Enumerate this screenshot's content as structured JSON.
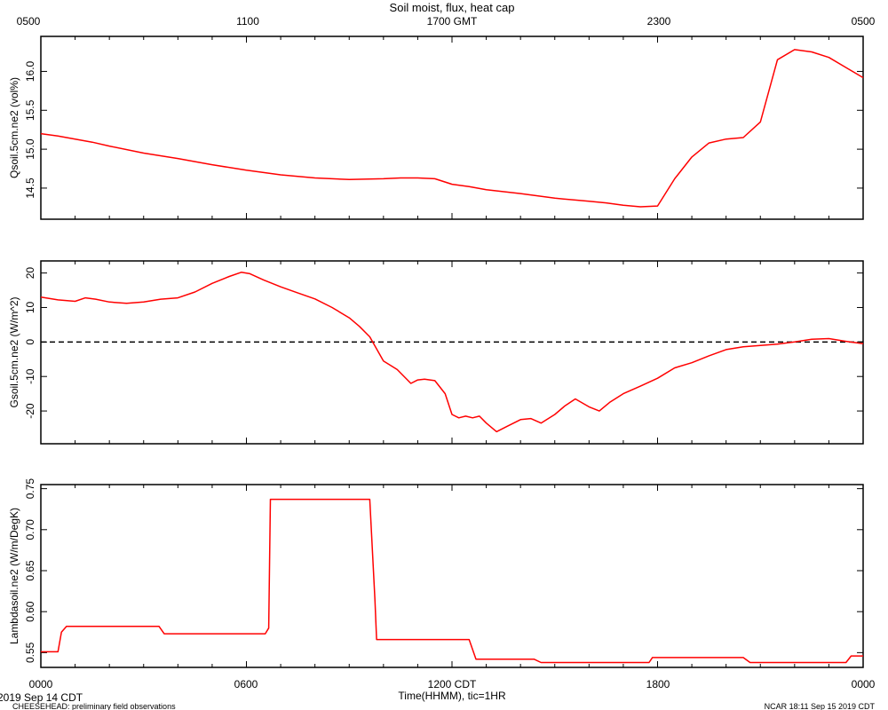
{
  "title": "Soil moist, flux, heat cap",
  "top_axis": {
    "ticks": [
      "0500",
      "1100",
      "1700 GMT",
      "2300",
      "0500"
    ]
  },
  "bottom_axis": {
    "ticks": [
      "0000",
      "0600",
      "1200 CDT",
      "1800",
      "0000"
    ],
    "label": "Time(HHMM), tic=1HR"
  },
  "footer": {
    "date": "2019 Sep 14 CDT",
    "left": "CHEESEHEAD: preliminary field observations",
    "right": "NCAR 18:11 Sep 15 2019 CDT"
  },
  "colors": {
    "series": "#ff0000",
    "axis": "#000000",
    "zero_line": "#000000"
  },
  "chart_data": [
    {
      "type": "line",
      "ylabel": "Qsoil.5cm.ne2 (vol%)",
      "ylim": [
        14.1,
        16.45
      ],
      "yticks": [
        "14.5",
        "15.0",
        "15.5",
        "16.0"
      ],
      "x_hours": [
        0,
        0.5,
        1,
        1.5,
        2,
        3,
        4,
        5,
        6,
        7,
        8,
        9,
        10,
        10.5,
        11,
        11.5,
        12,
        12.5,
        13,
        14,
        15,
        16,
        16.5,
        17,
        17.5,
        18,
        18.5,
        19,
        19.5,
        20,
        20.5,
        21,
        21.5,
        22,
        22.5,
        23,
        23.5,
        24
      ],
      "values": [
        15.2,
        15.17,
        15.13,
        15.09,
        15.04,
        14.95,
        14.88,
        14.8,
        14.73,
        14.67,
        14.63,
        14.61,
        14.62,
        14.63,
        14.63,
        14.62,
        14.55,
        14.52,
        14.48,
        14.43,
        14.37,
        14.33,
        14.31,
        14.28,
        14.26,
        14.27,
        14.62,
        14.9,
        15.08,
        15.13,
        15.15,
        15.35,
        16.15,
        16.28,
        16.25,
        16.18,
        16.05,
        15.92
      ]
    },
    {
      "type": "line",
      "ylabel": "Gsoil.5cm.ne2 (W/m^2)",
      "ylim": [
        -29.5,
        23.5
      ],
      "yticks": [
        "-20",
        "-10",
        "0",
        "10",
        "20"
      ],
      "zero_line": true,
      "x_hours": [
        0,
        0.5,
        1,
        1.3,
        1.6,
        2,
        2.5,
        3,
        3.5,
        4,
        4.5,
        5,
        5.5,
        5.85,
        6.1,
        6.5,
        7,
        7.5,
        8,
        8.5,
        9,
        9.3,
        9.6,
        9.8,
        10,
        10.4,
        10.8,
        11,
        11.2,
        11.5,
        11.8,
        12,
        12.2,
        12.4,
        12.6,
        12.8,
        13,
        13.3,
        13.6,
        14,
        14.3,
        14.6,
        15,
        15.3,
        15.6,
        16,
        16.3,
        16.6,
        17,
        17.5,
        18,
        18.5,
        19,
        19.5,
        20,
        20.5,
        21,
        21.5,
        22,
        22.5,
        23,
        23.5,
        24
      ],
      "values": [
        13,
        12.2,
        11.8,
        12.8,
        12.4,
        11.6,
        11.2,
        11.6,
        12.4,
        12.8,
        14.5,
        17,
        19,
        20.2,
        19.8,
        18,
        16,
        14.2,
        12.5,
        10,
        7,
        4.5,
        1.5,
        -2,
        -5.5,
        -8,
        -12,
        -11,
        -10.8,
        -11.2,
        -15,
        -21,
        -22,
        -21.5,
        -22,
        -21.5,
        -23.5,
        -26,
        -24.5,
        -22.5,
        -22.2,
        -23.5,
        -21,
        -18.5,
        -16.5,
        -18.8,
        -20,
        -17.5,
        -15,
        -12.8,
        -10.5,
        -7.5,
        -6,
        -4,
        -2.2,
        -1.4,
        -1,
        -0.6,
        0,
        0.8,
        1,
        0.2,
        -0.5
      ]
    },
    {
      "type": "line",
      "ylabel": "Lambdasoil.ne2 (W/m/DegK)",
      "ylim": [
        0.532,
        0.755
      ],
      "yticks": [
        "0.55",
        "0.60",
        "0.65",
        "0.70",
        "0.75"
      ],
      "x_hours": [
        0,
        0.5,
        0.6,
        0.75,
        3.45,
        3.6,
        6.55,
        6.65,
        6.7,
        9.6,
        9.75,
        9.8,
        12.5,
        12.7,
        14.4,
        14.6,
        17.75,
        17.85,
        20.5,
        20.7,
        23.5,
        23.65,
        24
      ],
      "values": [
        0.551,
        0.551,
        0.575,
        0.582,
        0.582,
        0.573,
        0.573,
        0.58,
        0.737,
        0.737,
        0.615,
        0.566,
        0.566,
        0.542,
        0.542,
        0.538,
        0.538,
        0.544,
        0.544,
        0.538,
        0.538,
        0.546,
        0.546
      ]
    }
  ]
}
